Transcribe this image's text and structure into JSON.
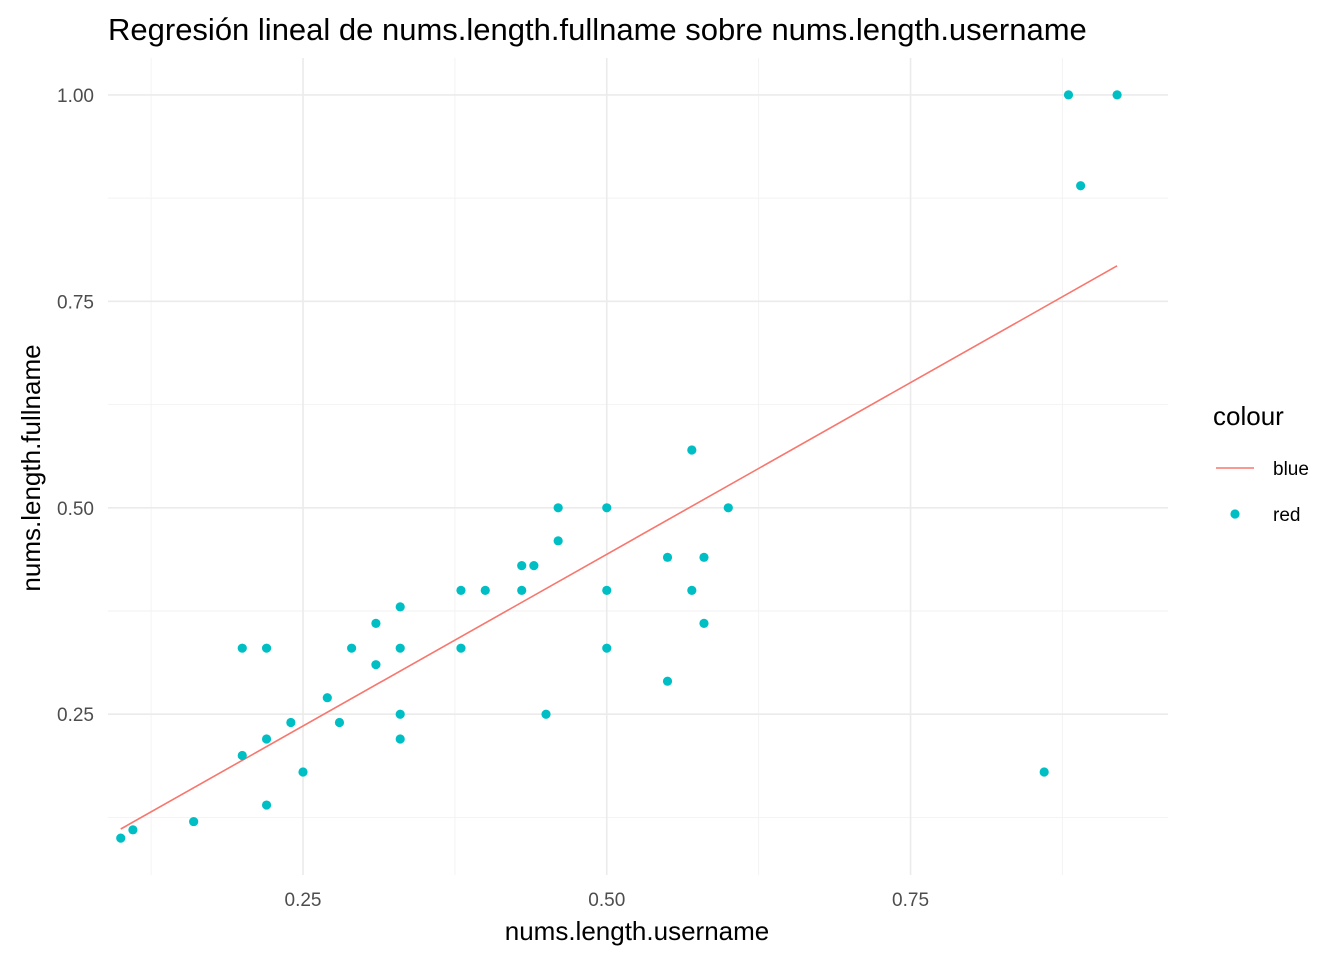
{
  "chart_data": {
    "type": "scatter",
    "title": "Regresión lineal de nums.length.fullname sobre nums.length.username",
    "xlabel": "nums.length.username",
    "ylabel": "nums.length.fullname",
    "xlim": [
      0.0895,
      0.9619
    ],
    "ylim": [
      0.0553,
      1.0447
    ],
    "x_ticks": [
      0.25,
      0.5,
      0.75
    ],
    "x_tick_labels": [
      "0.25",
      "0.50",
      "0.75"
    ],
    "y_ticks": [
      0.25,
      0.5,
      0.75,
      1.0
    ],
    "y_tick_labels": [
      "0.25",
      "0.50",
      "0.75",
      "1.00"
    ],
    "grid": true,
    "legend": {
      "title": "colour",
      "position": "right",
      "entries": [
        {
          "label": "blue",
          "kind": "line",
          "color": "#F8766D"
        },
        {
          "label": "red",
          "kind": "point",
          "color": "#00BFC4"
        }
      ]
    },
    "series": [
      {
        "name": "red",
        "kind": "scatter",
        "color": "#00BFC4",
        "points": [
          [
            0.1,
            0.1
          ],
          [
            0.11,
            0.11
          ],
          [
            0.16,
            0.12
          ],
          [
            0.2,
            0.33
          ],
          [
            0.2,
            0.2
          ],
          [
            0.22,
            0.33
          ],
          [
            0.22,
            0.22
          ],
          [
            0.22,
            0.14
          ],
          [
            0.24,
            0.24
          ],
          [
            0.25,
            0.18
          ],
          [
            0.27,
            0.27
          ],
          [
            0.28,
            0.24
          ],
          [
            0.29,
            0.33
          ],
          [
            0.31,
            0.36
          ],
          [
            0.31,
            0.31
          ],
          [
            0.33,
            0.38
          ],
          [
            0.33,
            0.33
          ],
          [
            0.33,
            0.25
          ],
          [
            0.33,
            0.22
          ],
          [
            0.38,
            0.4
          ],
          [
            0.38,
            0.33
          ],
          [
            0.4,
            0.4
          ],
          [
            0.43,
            0.43
          ],
          [
            0.43,
            0.4
          ],
          [
            0.44,
            0.43
          ],
          [
            0.45,
            0.25
          ],
          [
            0.46,
            0.5
          ],
          [
            0.46,
            0.46
          ],
          [
            0.5,
            0.5
          ],
          [
            0.5,
            0.4
          ],
          [
            0.5,
            0.33
          ],
          [
            0.55,
            0.44
          ],
          [
            0.55,
            0.29
          ],
          [
            0.57,
            0.57
          ],
          [
            0.57,
            0.4
          ],
          [
            0.58,
            0.44
          ],
          [
            0.58,
            0.36
          ],
          [
            0.6,
            0.5
          ],
          [
            0.86,
            0.18
          ],
          [
            0.88,
            1.0
          ],
          [
            0.89,
            0.89
          ],
          [
            0.92,
            1.0
          ]
        ]
      },
      {
        "name": "blue",
        "kind": "line",
        "color": "#F8766D",
        "points": [
          [
            0.1,
            0.111
          ],
          [
            0.92,
            0.793
          ]
        ]
      }
    ]
  }
}
